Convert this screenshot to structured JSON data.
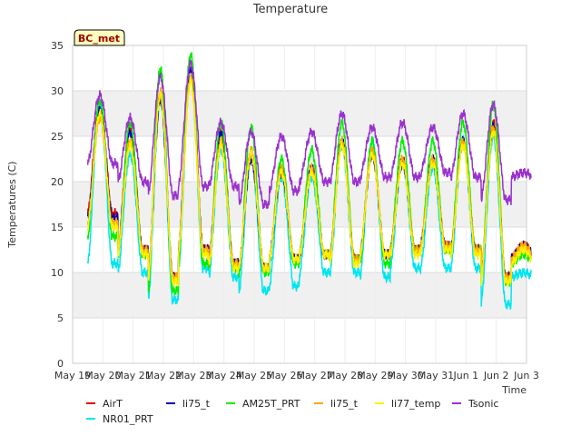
{
  "chart_data": {
    "type": "line",
    "title": "Temperature",
    "xlabel": "Time",
    "ylabel": "Temperatures (C)",
    "ylim": [
      0,
      35
    ],
    "xlim": [
      0,
      15
    ],
    "x_unit": "days since May 19",
    "x_ticks": [
      {
        "x": 0,
        "label": "May 19"
      },
      {
        "x": 1,
        "label": "May 20"
      },
      {
        "x": 2,
        "label": "May 21"
      },
      {
        "x": 3,
        "label": "May 22"
      },
      {
        "x": 4,
        "label": "May 23"
      },
      {
        "x": 5,
        "label": "May 24"
      },
      {
        "x": 6,
        "label": "May 25"
      },
      {
        "x": 7,
        "label": "May 26"
      },
      {
        "x": 8,
        "label": "May 27"
      },
      {
        "x": 9,
        "label": "May 28"
      },
      {
        "x": 10,
        "label": "May 29"
      },
      {
        "x": 11,
        "label": "May 30"
      },
      {
        "x": 12,
        "label": "May 31"
      },
      {
        "x": 13,
        "label": "Jun 1"
      },
      {
        "x": 14,
        "label": "Jun 2"
      },
      {
        "x": 15,
        "label": "Jun 3"
      }
    ],
    "y_ticks": [
      0,
      5,
      10,
      15,
      20,
      25,
      30,
      35
    ],
    "grid": true,
    "banded_background": true,
    "legend_position": "bottom",
    "annotation": "BC_met",
    "day_start": 0.5,
    "daily": {
      "AirT": {
        "min": [
          16.5,
          12.5,
          9.5,
          12.5,
          11.0,
          10.5,
          11.5,
          12.0,
          11.5,
          12.0,
          12.5,
          13.0,
          12.5,
          9.5,
          11.5
        ],
        "max": [
          28.5,
          26.0,
          29.5,
          33.0,
          25.5,
          22.5,
          21.5,
          21.5,
          24.5,
          23.0,
          22.5,
          22.5,
          24.5,
          26.5,
          13.0
        ]
      },
      "NR01_PRT": {
        "min": [
          11.0,
          10.0,
          7.0,
          10.5,
          9.5,
          8.0,
          8.5,
          10.0,
          10.0,
          9.5,
          10.5,
          10.5,
          10.5,
          6.5,
          9.5
        ],
        "max": [
          28.5,
          23.0,
          29.0,
          31.5,
          23.5,
          22.5,
          20.5,
          20.5,
          24.0,
          24.5,
          22.0,
          21.5,
          24.5,
          25.0,
          10.0
        ]
      },
      "li75_t": {
        "min": [
          16.0,
          12.5,
          9.5,
          12.5,
          11.0,
          10.5,
          11.5,
          12.0,
          11.5,
          12.0,
          12.5,
          13.0,
          12.5,
          9.5,
          11.5
        ],
        "max": [
          28.0,
          25.5,
          29.0,
          32.5,
          25.5,
          22.5,
          21.0,
          21.5,
          24.5,
          23.0,
          22.0,
          22.5,
          24.5,
          26.0,
          13.0
        ]
      },
      "AM25T_PRT": {
        "min": [
          14.0,
          12.0,
          8.0,
          11.0,
          10.5,
          10.0,
          11.0,
          12.0,
          11.5,
          11.0,
          12.5,
          12.5,
          12.5,
          9.0,
          11.0
        ],
        "max": [
          29.0,
          26.5,
          32.5,
          34.0,
          26.5,
          26.0,
          22.5,
          23.5,
          26.5,
          24.5,
          24.5,
          24.5,
          26.5,
          28.5,
          12.0
        ]
      },
      "li75_t_2": {
        "min": [
          15.5,
          12.5,
          9.5,
          12.5,
          11.0,
          10.5,
          11.5,
          12.0,
          11.5,
          12.0,
          12.5,
          13.0,
          12.5,
          9.5,
          11.5
        ],
        "max": [
          27.0,
          24.5,
          30.0,
          31.5,
          24.5,
          23.5,
          21.5,
          21.5,
          24.5,
          23.5,
          22.5,
          22.5,
          24.5,
          26.0,
          13.0
        ]
      },
      "li77_temp": {
        "min": [
          15.0,
          12.0,
          9.0,
          12.0,
          10.5,
          10.5,
          11.5,
          12.0,
          11.0,
          12.0,
          12.0,
          12.5,
          12.0,
          9.0,
          11.0
        ],
        "max": [
          27.5,
          24.0,
          29.5,
          31.0,
          24.0,
          23.0,
          21.0,
          21.0,
          24.0,
          23.0,
          22.0,
          22.0,
          24.0,
          25.5,
          12.5
        ]
      },
      "Tsonic": {
        "min": [
          22.0,
          20.0,
          18.5,
          19.5,
          19.5,
          17.5,
          19.0,
          20.0,
          20.0,
          20.5,
          20.5,
          21.0,
          20.5,
          18.0,
          20.5
        ],
        "max": [
          29.5,
          27.0,
          31.5,
          33.0,
          26.5,
          25.5,
          25.0,
          25.5,
          27.5,
          26.0,
          26.5,
          26.0,
          27.5,
          28.5,
          21.0
        ]
      }
    },
    "series": [
      {
        "name": "AirT",
        "key": "AirT",
        "color": "#dd0000"
      },
      {
        "name": "NR01_PRT",
        "key": "NR01_PRT",
        "color": "#00e5ee"
      },
      {
        "name": "li75_t",
        "key": "li75_t",
        "color": "#0000bb"
      },
      {
        "name": "AM25T_PRT",
        "key": "AM25T_PRT",
        "color": "#00ee00"
      },
      {
        "name": "li75_t",
        "key": "li75_t_2",
        "color": "#ffa500"
      },
      {
        "name": "li77_temp",
        "key": "li77_temp",
        "color": "#ffee00"
      },
      {
        "name": "Tsonic",
        "key": "Tsonic",
        "color": "#9a32cd"
      }
    ]
  }
}
